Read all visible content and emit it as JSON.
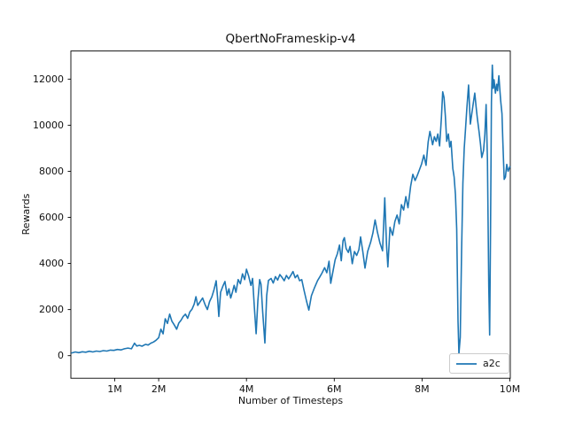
{
  "chart_data": {
    "type": "line",
    "title": "QbertNoFrameskip-v4",
    "xlabel": "Number of Timesteps",
    "ylabel": "Rewards",
    "grid": false,
    "background_color": "#ffffff",
    "axis_color": "#000000",
    "legend_position": "lower right",
    "xlim_millions": [
      0,
      10.01
    ],
    "ylim": [
      -980,
      13220
    ],
    "xticks": [
      {
        "value_millions": 1,
        "label": "1M"
      },
      {
        "value_millions": 2,
        "label": "2M"
      },
      {
        "value_millions": 4,
        "label": "4M"
      },
      {
        "value_millions": 6,
        "label": "6M"
      },
      {
        "value_millions": 8,
        "label": "8M"
      },
      {
        "value_millions": 10,
        "label": "10M"
      }
    ],
    "yticks": [
      {
        "value": 0,
        "label": "0"
      },
      {
        "value": 2000,
        "label": "2000"
      },
      {
        "value": 4000,
        "label": "4000"
      },
      {
        "value": 6000,
        "label": "6000"
      },
      {
        "value": 8000,
        "label": "8000"
      },
      {
        "value": 10000,
        "label": "10000"
      },
      {
        "value": 12000,
        "label": "12000"
      }
    ],
    "series": [
      {
        "name": "a2c",
        "color": "#1f77b4",
        "points_x_millions_y_reward": [
          [
            0.02,
            120
          ],
          [
            0.1,
            160
          ],
          [
            0.18,
            130
          ],
          [
            0.26,
            170
          ],
          [
            0.34,
            150
          ],
          [
            0.42,
            190
          ],
          [
            0.5,
            160
          ],
          [
            0.58,
            200
          ],
          [
            0.66,
            180
          ],
          [
            0.74,
            220
          ],
          [
            0.82,
            200
          ],
          [
            0.9,
            240
          ],
          [
            0.98,
            230
          ],
          [
            1.06,
            270
          ],
          [
            1.14,
            250
          ],
          [
            1.22,
            300
          ],
          [
            1.3,
            330
          ],
          [
            1.38,
            300
          ],
          [
            1.45,
            540
          ],
          [
            1.5,
            420
          ],
          [
            1.56,
            450
          ],
          [
            1.62,
            410
          ],
          [
            1.7,
            490
          ],
          [
            1.76,
            460
          ],
          [
            1.82,
            540
          ],
          [
            1.88,
            590
          ],
          [
            1.94,
            670
          ],
          [
            2.0,
            780
          ],
          [
            2.05,
            1150
          ],
          [
            2.1,
            950
          ],
          [
            2.15,
            1600
          ],
          [
            2.2,
            1400
          ],
          [
            2.25,
            1800
          ],
          [
            2.3,
            1500
          ],
          [
            2.36,
            1320
          ],
          [
            2.41,
            1150
          ],
          [
            2.46,
            1420
          ],
          [
            2.51,
            1540
          ],
          [
            2.56,
            1700
          ],
          [
            2.61,
            1800
          ],
          [
            2.66,
            1620
          ],
          [
            2.71,
            1900
          ],
          [
            2.76,
            2020
          ],
          [
            2.81,
            2240
          ],
          [
            2.85,
            2560
          ],
          [
            2.89,
            2180
          ],
          [
            2.95,
            2360
          ],
          [
            3.0,
            2500
          ],
          [
            3.06,
            2200
          ],
          [
            3.11,
            2000
          ],
          [
            3.16,
            2350
          ],
          [
            3.21,
            2550
          ],
          [
            3.26,
            2850
          ],
          [
            3.31,
            3250
          ],
          [
            3.34,
            2550
          ],
          [
            3.37,
            1700
          ],
          [
            3.41,
            2750
          ],
          [
            3.46,
            3000
          ],
          [
            3.51,
            3220
          ],
          [
            3.56,
            2620
          ],
          [
            3.6,
            2900
          ],
          [
            3.64,
            2500
          ],
          [
            3.68,
            2750
          ],
          [
            3.72,
            3050
          ],
          [
            3.76,
            2750
          ],
          [
            3.81,
            3300
          ],
          [
            3.86,
            3120
          ],
          [
            3.91,
            3550
          ],
          [
            3.96,
            3300
          ],
          [
            4.0,
            3750
          ],
          [
            4.05,
            3450
          ],
          [
            4.1,
            3050
          ],
          [
            4.14,
            3350
          ],
          [
            4.18,
            2100
          ],
          [
            4.22,
            950
          ],
          [
            4.26,
            2400
          ],
          [
            4.3,
            3300
          ],
          [
            4.33,
            3100
          ],
          [
            4.37,
            1900
          ],
          [
            4.42,
            550
          ],
          [
            4.46,
            2600
          ],
          [
            4.5,
            3260
          ],
          [
            4.56,
            3350
          ],
          [
            4.61,
            3150
          ],
          [
            4.66,
            3430
          ],
          [
            4.71,
            3280
          ],
          [
            4.76,
            3520
          ],
          [
            4.81,
            3400
          ],
          [
            4.86,
            3250
          ],
          [
            4.91,
            3480
          ],
          [
            4.96,
            3330
          ],
          [
            5.01,
            3480
          ],
          [
            5.06,
            3650
          ],
          [
            5.11,
            3380
          ],
          [
            5.16,
            3500
          ],
          [
            5.21,
            3250
          ],
          [
            5.26,
            3300
          ],
          [
            5.31,
            2850
          ],
          [
            5.37,
            2350
          ],
          [
            5.42,
            1980
          ],
          [
            5.48,
            2600
          ],
          [
            5.55,
            2950
          ],
          [
            5.62,
            3260
          ],
          [
            5.67,
            3420
          ],
          [
            5.72,
            3580
          ],
          [
            5.78,
            3820
          ],
          [
            5.83,
            3600
          ],
          [
            5.88,
            4100
          ],
          [
            5.92,
            3140
          ],
          [
            5.97,
            3650
          ],
          [
            6.02,
            4160
          ],
          [
            6.07,
            4420
          ],
          [
            6.12,
            4800
          ],
          [
            6.16,
            4120
          ],
          [
            6.2,
            4990
          ],
          [
            6.23,
            5120
          ],
          [
            6.27,
            4650
          ],
          [
            6.32,
            4480
          ],
          [
            6.36,
            4740
          ],
          [
            6.41,
            3990
          ],
          [
            6.46,
            4520
          ],
          [
            6.51,
            4350
          ],
          [
            6.56,
            4600
          ],
          [
            6.6,
            5150
          ],
          [
            6.65,
            4520
          ],
          [
            6.7,
            3800
          ],
          [
            6.76,
            4520
          ],
          [
            6.83,
            4930
          ],
          [
            6.88,
            5320
          ],
          [
            6.93,
            5890
          ],
          [
            6.98,
            5380
          ],
          [
            7.04,
            4900
          ],
          [
            7.1,
            4550
          ],
          [
            7.15,
            6850
          ],
          [
            7.19,
            4800
          ],
          [
            7.22,
            3850
          ],
          [
            7.27,
            5570
          ],
          [
            7.33,
            5220
          ],
          [
            7.38,
            5820
          ],
          [
            7.43,
            6100
          ],
          [
            7.48,
            5720
          ],
          [
            7.53,
            6550
          ],
          [
            7.58,
            6320
          ],
          [
            7.63,
            6900
          ],
          [
            7.68,
            6420
          ],
          [
            7.74,
            7350
          ],
          [
            7.79,
            7870
          ],
          [
            7.84,
            7600
          ],
          [
            7.89,
            7820
          ],
          [
            7.94,
            8060
          ],
          [
            7.99,
            8320
          ],
          [
            8.04,
            8700
          ],
          [
            8.09,
            8260
          ],
          [
            8.14,
            9280
          ],
          [
            8.18,
            9730
          ],
          [
            8.24,
            9150
          ],
          [
            8.28,
            9500
          ],
          [
            8.32,
            9300
          ],
          [
            8.36,
            9620
          ],
          [
            8.4,
            9100
          ],
          [
            8.44,
            10300
          ],
          [
            8.47,
            11450
          ],
          [
            8.5,
            11200
          ],
          [
            8.53,
            10400
          ],
          [
            8.56,
            9300
          ],
          [
            8.6,
            9620
          ],
          [
            8.63,
            9050
          ],
          [
            8.66,
            9300
          ],
          [
            8.7,
            8130
          ],
          [
            8.73,
            7750
          ],
          [
            8.76,
            6980
          ],
          [
            8.79,
            5500
          ],
          [
            8.82,
            1500
          ],
          [
            8.84,
            80
          ],
          [
            8.87,
            800
          ],
          [
            8.9,
            4500
          ],
          [
            8.93,
            7500
          ],
          [
            8.96,
            9000
          ],
          [
            8.99,
            9860
          ],
          [
            9.02,
            10700
          ],
          [
            9.06,
            11740
          ],
          [
            9.1,
            10050
          ],
          [
            9.14,
            10600
          ],
          [
            9.17,
            11000
          ],
          [
            9.2,
            11390
          ],
          [
            9.23,
            10800
          ],
          [
            9.26,
            10300
          ],
          [
            9.3,
            9700
          ],
          [
            9.33,
            9200
          ],
          [
            9.36,
            8600
          ],
          [
            9.4,
            8900
          ],
          [
            9.43,
            9600
          ],
          [
            9.46,
            10900
          ],
          [
            9.49,
            8500
          ],
          [
            9.52,
            3000
          ],
          [
            9.54,
            900
          ],
          [
            9.56,
            5500
          ],
          [
            9.58,
            11000
          ],
          [
            9.6,
            12610
          ],
          [
            9.62,
            11600
          ],
          [
            9.64,
            11970
          ],
          [
            9.67,
            11390
          ],
          [
            9.7,
            11775
          ],
          [
            9.72,
            11500
          ],
          [
            9.75,
            12150
          ],
          [
            9.77,
            11600
          ],
          [
            9.79,
            11080
          ],
          [
            9.82,
            10500
          ],
          [
            9.84,
            9280
          ],
          [
            9.87,
            7650
          ],
          [
            9.9,
            7750
          ],
          [
            9.93,
            8300
          ],
          [
            9.96,
            8000
          ],
          [
            10.0,
            8200
          ]
        ]
      }
    ]
  }
}
